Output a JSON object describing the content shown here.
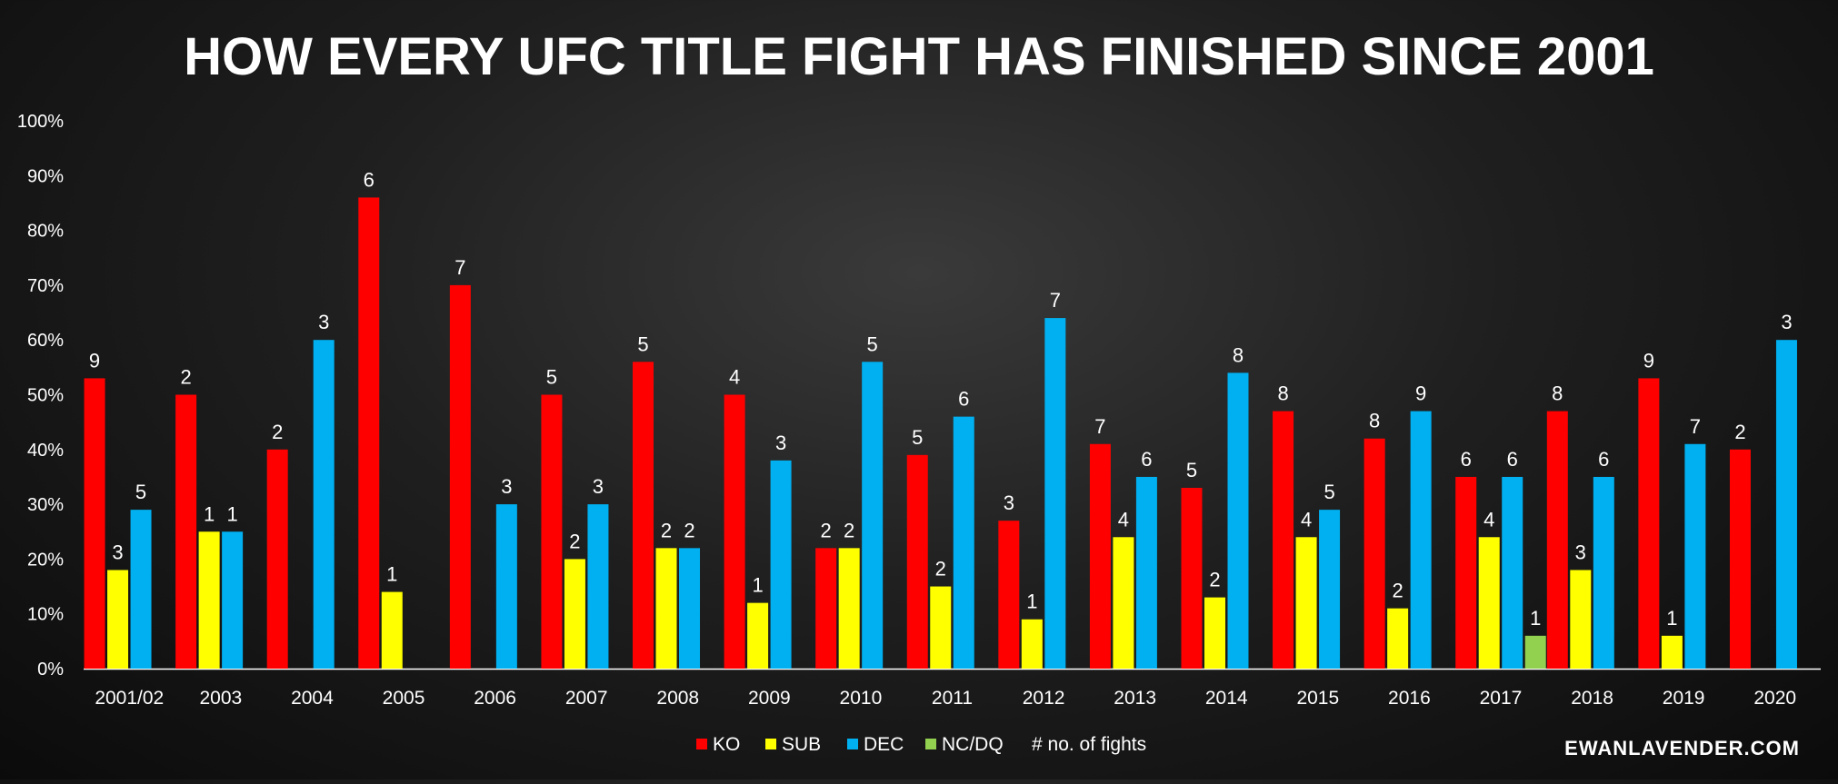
{
  "chart_data": {
    "type": "bar",
    "title": "HOW EVERY UFC TITLE FIGHT HAS FINISHED SINCE 2001",
    "categories": [
      "2001/02",
      "2003",
      "2004",
      "2005",
      "2006",
      "2007",
      "2008",
      "2009",
      "2010",
      "2011",
      "2012",
      "2013",
      "2014",
      "2015",
      "2016",
      "2017",
      "2018",
      "2019",
      "2020"
    ],
    "ylim": [
      0,
      100
    ],
    "yticks": [
      "0%",
      "10%",
      "20%",
      "30%",
      "40%",
      "50%",
      "60%",
      "70%",
      "80%",
      "90%",
      "100%"
    ],
    "grid": false,
    "legend_position": "bottom-center",
    "series": [
      {
        "name": "KO",
        "color": "#ff0000",
        "values": [
          53,
          50,
          40,
          86,
          70,
          50,
          56,
          50,
          22,
          39,
          27,
          41,
          33,
          47,
          42,
          35,
          47,
          53,
          40
        ],
        "labels": [
          "9",
          "2",
          "2",
          "6",
          "7",
          "5",
          "5",
          "4",
          "2",
          "5",
          "3",
          "7",
          "5",
          "8",
          "8",
          "6",
          "8",
          "9",
          "2"
        ]
      },
      {
        "name": "SUB",
        "color": "#ffff00",
        "values": [
          18,
          25,
          null,
          14,
          null,
          20,
          22,
          12,
          22,
          15,
          9,
          24,
          13,
          24,
          11,
          24,
          18,
          6,
          null
        ],
        "labels": [
          "3",
          "1",
          null,
          "1",
          null,
          "2",
          "2",
          "1",
          "2",
          "2",
          "1",
          "4",
          "2",
          "4",
          "2",
          "4",
          "3",
          "1",
          null
        ]
      },
      {
        "name": "DEC",
        "color": "#00b0f0",
        "values": [
          29,
          25,
          60,
          null,
          30,
          30,
          22,
          38,
          56,
          46,
          64,
          35,
          54,
          29,
          47,
          35,
          35,
          41,
          60
        ],
        "labels": [
          "5",
          "1",
          "3",
          null,
          "3",
          "3",
          "2",
          "3",
          "5",
          "6",
          "7",
          "6",
          "8",
          "5",
          "9",
          "6",
          "6",
          "7",
          "3"
        ]
      },
      {
        "name": "NC/DQ",
        "color": "#92d050",
        "values": [
          null,
          null,
          null,
          null,
          null,
          null,
          null,
          null,
          null,
          null,
          null,
          null,
          null,
          null,
          null,
          6,
          null,
          null,
          null
        ],
        "labels": [
          null,
          null,
          null,
          null,
          null,
          null,
          null,
          null,
          null,
          null,
          null,
          null,
          null,
          null,
          null,
          "1",
          null,
          null,
          null
        ]
      }
    ],
    "legend_note": "# no. of fights",
    "credit": "EWANLAVENDER.COM"
  }
}
